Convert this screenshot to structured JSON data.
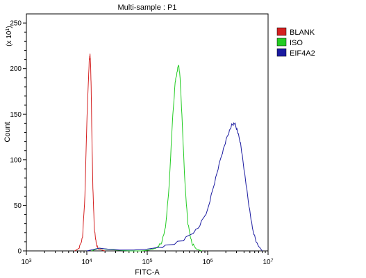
{
  "chart_data": {
    "type": "line",
    "title": "Multi-sample : P1",
    "xlabel": "FITC-A",
    "ylabel": "Count",
    "y_multiplier_label": {
      "prefix": "(x 10",
      "exponent": "1",
      "suffix": ")"
    },
    "x_scale": "log",
    "xlim": [
      1000,
      10000000
    ],
    "ylim": [
      0,
      260
    ],
    "grid": false,
    "legend_position": "top-right",
    "x_ticks": [
      {
        "value": 1000,
        "base": "10",
        "exp": "3"
      },
      {
        "value": 10000,
        "base": "10",
        "exp": "4"
      },
      {
        "value": 100000,
        "base": "10",
        "exp": "5"
      },
      {
        "value": 1000000,
        "base": "10",
        "exp": "6"
      },
      {
        "value": 10000000,
        "base": "10",
        "exp": "7"
      }
    ],
    "y_ticks": [
      0,
      50,
      100,
      150,
      200,
      250
    ],
    "series": [
      {
        "name": "BLANK",
        "color": "#d42020",
        "x": [
          6300,
          7500,
          8500,
          9300,
          10000,
          10600,
          11000,
          11300,
          11500,
          11800,
          12100,
          12600,
          13300,
          14300,
          15500,
          17500,
          20000
        ],
        "y": [
          0,
          3,
          15,
          60,
          140,
          185,
          210,
          215,
          208,
          180,
          130,
          70,
          25,
          8,
          2,
          1,
          0
        ]
      },
      {
        "name": "ISO",
        "color": "#22cc22",
        "x": [
          12000,
          16000,
          20000,
          30000,
          50000,
          80000,
          110000,
          140000,
          170000,
          200000,
          230000,
          260000,
          290000,
          310000,
          330000,
          350000,
          380000,
          420000,
          470000,
          550000,
          650000,
          800000
        ],
        "y": [
          0,
          3,
          2,
          1,
          0,
          0,
          1,
          3,
          8,
          25,
          70,
          140,
          185,
          195,
          205,
          190,
          140,
          75,
          30,
          8,
          2,
          0
        ]
      },
      {
        "name": "EIF4A2",
        "color": "#1a1aa0",
        "x": [
          10000,
          16000,
          22000,
          35000,
          60000,
          100000,
          200000,
          400000,
          700000,
          1000000,
          1300000,
          1700000,
          2100000,
          2500000,
          2800000,
          3100000,
          3500000,
          4000000,
          4700000,
          5500000,
          6500000,
          8000000
        ],
        "y": [
          0,
          3,
          2,
          1,
          1,
          2,
          5,
          12,
          25,
          45,
          75,
          105,
          125,
          138,
          140,
          132,
          118,
          90,
          55,
          25,
          8,
          0
        ]
      }
    ]
  }
}
